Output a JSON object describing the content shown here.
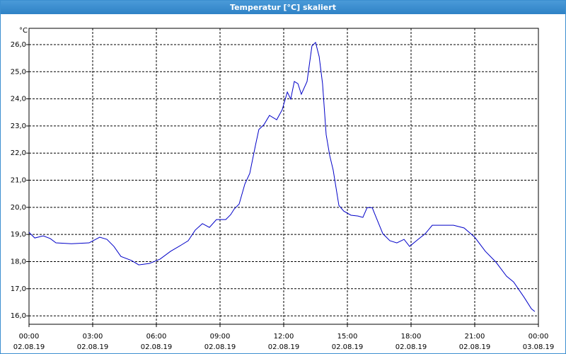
{
  "window_title": "Temperatur [°C] skaliert",
  "chart_data": {
    "type": "line",
    "ylabel": "°C",
    "x": [
      0,
      0.27,
      0.67,
      1,
      1.27,
      2,
      2.83,
      3.33,
      3.67,
      4,
      4.33,
      4.83,
      5.17,
      5.67,
      6.17,
      6.67,
      7.17,
      7.5,
      7.83,
      8.17,
      8.5,
      8.83,
      9.27,
      9.5,
      9.67,
      9.9,
      10.17,
      10.4,
      10.67,
      10.83,
      11.07,
      11.33,
      11.67,
      11.93,
      12.17,
      12.33,
      12.5,
      12.67,
      12.83,
      13.1,
      13.33,
      13.5,
      13.67,
      13.83,
      14,
      14.17,
      14.33,
      14.6,
      14.83,
      15.17,
      15.5,
      15.73,
      15.93,
      16.17,
      16.33,
      16.67,
      17,
      17.33,
      17.67,
      17.93,
      18.33,
      18.67,
      19,
      19.33,
      20,
      20.5,
      21,
      21.5,
      22,
      22.5,
      22.83,
      23.33,
      23.67,
      23.83
    ],
    "series": [
      {
        "name": "Temperatur",
        "color": "#0000c8",
        "values": [
          19.08,
          18.87,
          18.95,
          18.85,
          18.69,
          18.66,
          18.69,
          18.9,
          18.82,
          18.56,
          18.19,
          18.04,
          17.88,
          17.93,
          18.09,
          18.38,
          18.61,
          18.77,
          19.16,
          19.4,
          19.26,
          19.55,
          19.55,
          19.73,
          19.94,
          20.12,
          20.86,
          21.25,
          22.29,
          22.87,
          23.05,
          23.39,
          23.23,
          23.6,
          24.25,
          23.99,
          24.64,
          24.56,
          24.17,
          24.64,
          25.95,
          26.08,
          25.56,
          24.56,
          22.68,
          21.9,
          21.38,
          20.07,
          19.86,
          19.71,
          19.68,
          19.63,
          19.99,
          19.99,
          19.68,
          19.03,
          18.77,
          18.69,
          18.82,
          18.56,
          18.82,
          19.03,
          19.34,
          19.34,
          19.34,
          19.24,
          18.9,
          18.38,
          17.98,
          17.46,
          17.25,
          16.68,
          16.26,
          16.16
        ]
      }
    ],
    "xlim": [
      0,
      24
    ],
    "xticks": [
      {
        "value": 0,
        "label": "00:00"
      },
      {
        "value": 3,
        "label": "03:00"
      },
      {
        "value": 6,
        "label": "06:00"
      },
      {
        "value": 9,
        "label": "09:00"
      },
      {
        "value": 12,
        "label": "12:00"
      },
      {
        "value": 15,
        "label": "15:00"
      },
      {
        "value": 18,
        "label": "18:00"
      },
      {
        "value": 21,
        "label": "21:00"
      },
      {
        "value": 24,
        "label": "00:00"
      }
    ],
    "xtick_dates": [
      "02.08.19",
      "02.08.19",
      "02.08.19",
      "02.08.19",
      "02.08.19",
      "02.08.19",
      "02.08.19",
      "02.08.19",
      "03.08.19"
    ],
    "ylim": [
      15.69,
      26.6
    ],
    "yticks": [
      {
        "value": 16,
        "label": "16,0"
      },
      {
        "value": 17,
        "label": "17,0"
      },
      {
        "value": 18,
        "label": "18,0"
      },
      {
        "value": 19,
        "label": "19,0"
      },
      {
        "value": 20,
        "label": "20,0"
      },
      {
        "value": 21,
        "label": "21,0"
      },
      {
        "value": 22,
        "label": "22,0"
      },
      {
        "value": 23,
        "label": "23,0"
      },
      {
        "value": 24,
        "label": "24,0"
      },
      {
        "value": 25,
        "label": "25,0"
      },
      {
        "value": 26,
        "label": "26,0"
      }
    ],
    "grid": true
  }
}
